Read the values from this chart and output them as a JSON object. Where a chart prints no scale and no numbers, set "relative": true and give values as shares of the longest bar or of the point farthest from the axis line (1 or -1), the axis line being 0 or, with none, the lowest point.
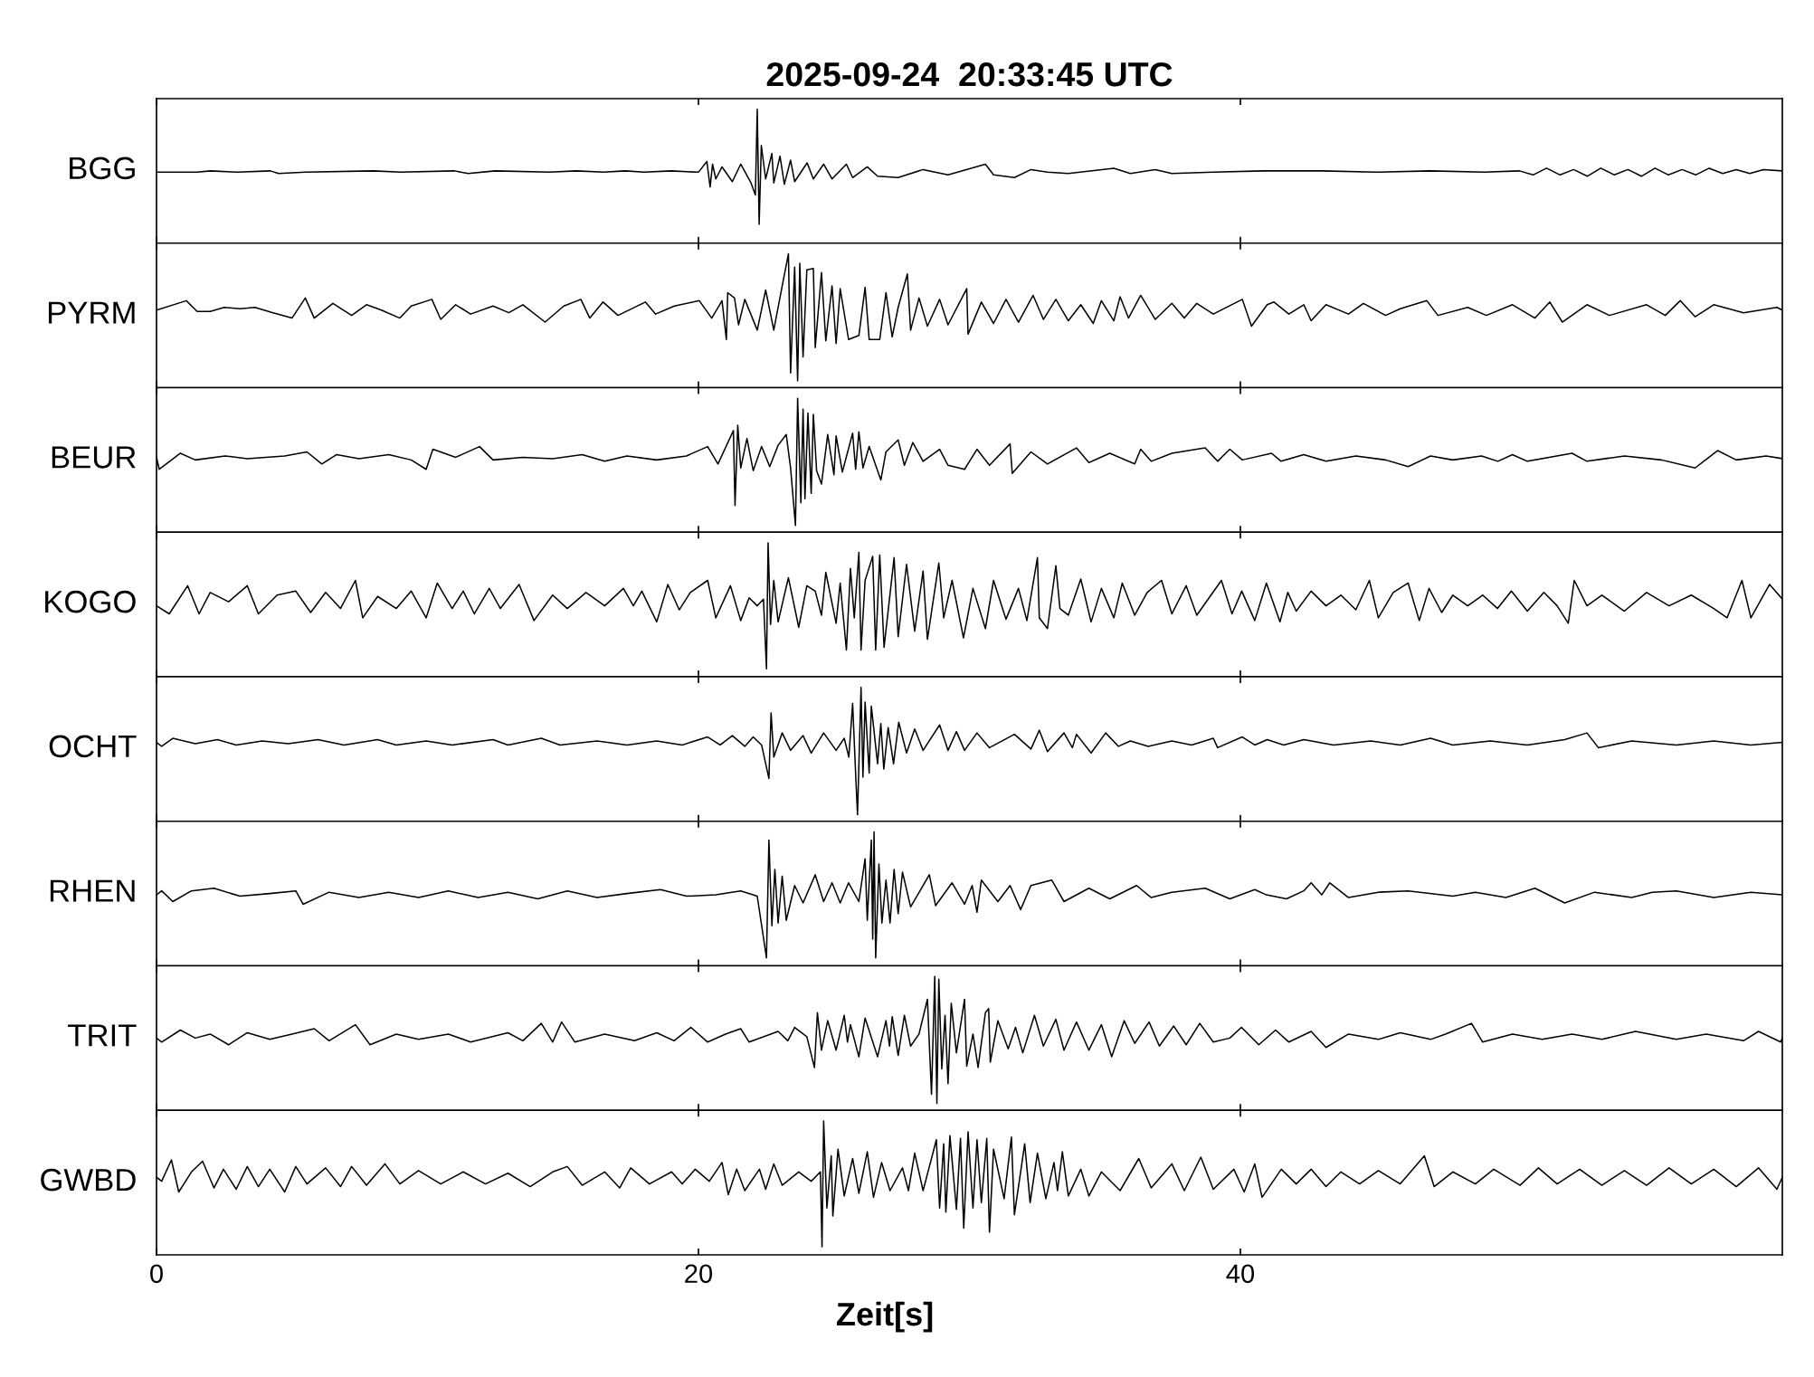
{
  "chart_data": [
    {
      "type": "line",
      "title": "2025-09-24  20:33:45 UTC",
      "ylabel": "BGG",
      "relative": true,
      "color": "#000000",
      "xlim": [
        0,
        60
      ],
      "xticks": [
        0,
        20,
        40
      ],
      "tick_labels": false,
      "x": [
        0,
        1.5,
        2.0,
        3.0,
        4.2,
        4.5,
        5.5,
        8.0,
        9.0,
        11.0,
        11.5,
        12.5,
        14.5,
        15.5,
        16.5,
        17.3,
        18.0,
        19.0,
        20.0,
        20.31,
        20.43,
        20.52,
        20.64,
        20.87,
        21.25,
        21.56,
        21.94,
        22.1,
        22.17,
        22.24,
        22.32,
        22.48,
        22.71,
        22.78,
        23.01,
        23.17,
        23.4,
        23.55,
        24.01,
        24.24,
        24.62,
        24.93,
        25.46,
        25.69,
        26.23,
        26.61,
        27.37,
        28.29,
        29.21,
        30.59,
        30.89,
        31.66,
        32.27,
        32.88,
        33.65,
        35.33,
        35.94,
        36.86,
        37.47,
        39.0,
        40.84,
        43,
        45,
        47,
        49,
        50.3,
        50.8,
        51.3,
        51.8,
        52.3,
        52.8,
        53.3,
        53.8,
        54.3,
        54.8,
        55.3,
        55.8,
        56.3,
        56.8,
        57.3,
        57.8,
        58.3,
        58.8,
        59.3,
        60
      ],
      "values": [
        0.53,
        0.53,
        0.54,
        0.53,
        0.54,
        0.52,
        0.53,
        0.54,
        0.53,
        0.54,
        0.52,
        0.54,
        0.53,
        0.54,
        0.53,
        0.54,
        0.53,
        0.54,
        0.53,
        0.61,
        0.42,
        0.59,
        0.48,
        0.57,
        0.46,
        0.59,
        0.45,
        0.36,
        1.0,
        0.14,
        0.73,
        0.48,
        0.67,
        0.45,
        0.65,
        0.44,
        0.62,
        0.46,
        0.6,
        0.48,
        0.59,
        0.48,
        0.59,
        0.49,
        0.57,
        0.5,
        0.49,
        0.55,
        0.51,
        0.59,
        0.51,
        0.49,
        0.55,
        0.53,
        0.52,
        0.56,
        0.52,
        0.55,
        0.52,
        0.53,
        0.54,
        0.54,
        0.53,
        0.54,
        0.53,
        0.54,
        0.51,
        0.56,
        0.51,
        0.55,
        0.5,
        0.56,
        0.51,
        0.55,
        0.5,
        0.56,
        0.51,
        0.55,
        0.51,
        0.56,
        0.52,
        0.55,
        0.52,
        0.55,
        0.54
      ]
    },
    {
      "type": "line",
      "ylabel": "PYRM",
      "relative": true,
      "color": "#000000",
      "xlim": [
        0,
        60
      ],
      "xticks": [
        0,
        20,
        40
      ],
      "tick_labels": false,
      "x": [
        0,
        1.1,
        1.5,
        1.98,
        2.5,
        3.08,
        3.63,
        4.3,
        5.0,
        5.49,
        5.82,
        6.51,
        7.2,
        7.75,
        8.3,
        8.98,
        9.4,
        10.16,
        10.49,
        11.04,
        11.59,
        12.42,
        13.0,
        13.52,
        14.34,
        15.03,
        15.66,
        15.99,
        16.48,
        17.03,
        18.04,
        18.42,
        19.11,
        20.03,
        20.49,
        20.87,
        21.03,
        21.08,
        21.33,
        21.48,
        21.71,
        22.17,
        22.48,
        22.78,
        23.09,
        23.32,
        23.4,
        23.55,
        23.66,
        23.74,
        23.86,
        24.0,
        24.24,
        24.31,
        24.54,
        24.7,
        24.93,
        25.08,
        25.23,
        25.54,
        25.92,
        26.15,
        26.3,
        26.69,
        26.92,
        27.15,
        27.37,
        27.71,
        27.83,
        28.14,
        28.45,
        28.9,
        29.21,
        29.67,
        29.9,
        29.95,
        30.44,
        30.89,
        31.35,
        31.81,
        32.35,
        32.73,
        33.19,
        33.65,
        34.11,
        34.57,
        34.87,
        35.33,
        35.56,
        35.87,
        36.32,
        36.86,
        37.47,
        37.93,
        38.39,
        39.0,
        40.07,
        40.41,
        40.99,
        41.24,
        41.79,
        42.34,
        42.61,
        43.16,
        43.99,
        44.54,
        45.36,
        45.9,
        46.88,
        47.29,
        48.39,
        49.08,
        50.04,
        50.87,
        51.42,
        51.88,
        52.79,
        53.62,
        54.99,
        55.68,
        56.23,
        56.78,
        57.47,
        58.57,
        59.8,
        60
      ],
      "values": [
        0.58,
        0.65,
        0.57,
        0.57,
        0.6,
        0.59,
        0.6,
        0.56,
        0.52,
        0.67,
        0.52,
        0.63,
        0.54,
        0.62,
        0.58,
        0.52,
        0.61,
        0.66,
        0.51,
        0.62,
        0.55,
        0.61,
        0.56,
        0.62,
        0.49,
        0.61,
        0.66,
        0.52,
        0.64,
        0.54,
        0.64,
        0.55,
        0.61,
        0.65,
        0.52,
        0.65,
        0.36,
        0.71,
        0.67,
        0.47,
        0.66,
        0.43,
        0.73,
        0.43,
        0.76,
        1.0,
        0.11,
        0.9,
        0.05,
        0.93,
        0.23,
        0.88,
        0.89,
        0.3,
        0.86,
        0.35,
        0.76,
        0.33,
        0.74,
        0.36,
        0.39,
        0.75,
        0.36,
        0.36,
        0.71,
        0.38,
        0.6,
        0.85,
        0.43,
        0.67,
        0.46,
        0.66,
        0.47,
        0.65,
        0.74,
        0.4,
        0.64,
        0.48,
        0.66,
        0.49,
        0.69,
        0.51,
        0.66,
        0.5,
        0.62,
        0.48,
        0.65,
        0.5,
        0.68,
        0.52,
        0.69,
        0.51,
        0.63,
        0.52,
        0.63,
        0.55,
        0.66,
        0.46,
        0.62,
        0.64,
        0.55,
        0.62,
        0.5,
        0.62,
        0.55,
        0.63,
        0.54,
        0.59,
        0.65,
        0.54,
        0.6,
        0.54,
        0.62,
        0.52,
        0.64,
        0.49,
        0.62,
        0.54,
        0.62,
        0.54,
        0.65,
        0.53,
        0.62,
        0.56,
        0.6,
        0.58
      ]
    },
    {
      "type": "line",
      "ylabel": "BEUR",
      "relative": true,
      "color": "#000000",
      "xlim": [
        0,
        60
      ],
      "xticks": [
        0,
        20,
        40
      ],
      "tick_labels": false,
      "x": [
        0,
        0.1,
        0.88,
        1.43,
        2.53,
        3.35,
        4.73,
        5.55,
        6.1,
        6.65,
        7.47,
        8.57,
        9.4,
        9.95,
        10.2,
        11.04,
        11.92,
        12.42,
        13.52,
        14.62,
        15.71,
        16.54,
        17.36,
        18.46,
        19.56,
        20.34,
        20.72,
        21.29,
        21.35,
        21.45,
        21.56,
        21.79,
        22.02,
        22.33,
        22.63,
        22.94,
        23.24,
        23.4,
        23.58,
        23.66,
        23.78,
        23.86,
        23.93,
        24.04,
        24.16,
        24.24,
        24.36,
        24.54,
        24.77,
        25.0,
        25.08,
        25.31,
        25.69,
        25.8,
        25.92,
        26.07,
        26.3,
        26.73,
        26.92,
        27.37,
        27.6,
        27.91,
        28.29,
        28.9,
        29.21,
        29.82,
        30.28,
        30.74,
        31.5,
        31.58,
        32.27,
        32.88,
        33.95,
        34.41,
        35.18,
        36.1,
        36.32,
        36.71,
        37.47,
        38.7,
        39.16,
        39.61,
        40.07,
        41.15,
        41.5,
        42.34,
        43.16,
        44.26,
        45.36,
        46.19,
        47.02,
        47.84,
        48.9,
        49.5,
        50.04,
        50.59,
        52.24,
        52.79,
        54.17,
        55.54,
        56.78,
        57.61,
        58.3,
        59.4,
        60
      ],
      "values": [
        0.56,
        0.47,
        0.59,
        0.54,
        0.57,
        0.55,
        0.57,
        0.6,
        0.51,
        0.58,
        0.55,
        0.58,
        0.54,
        0.47,
        0.62,
        0.56,
        0.64,
        0.54,
        0.56,
        0.55,
        0.58,
        0.53,
        0.57,
        0.54,
        0.57,
        0.64,
        0.51,
        0.76,
        0.2,
        0.8,
        0.48,
        0.7,
        0.46,
        0.64,
        0.49,
        0.65,
        0.73,
        0.48,
        0.05,
        1.0,
        0.22,
        0.92,
        0.25,
        0.89,
        0.29,
        0.88,
        0.46,
        0.36,
        0.73,
        0.43,
        0.72,
        0.45,
        0.74,
        0.47,
        0.75,
        0.48,
        0.64,
        0.39,
        0.6,
        0.69,
        0.5,
        0.67,
        0.53,
        0.62,
        0.5,
        0.47,
        0.62,
        0.5,
        0.66,
        0.44,
        0.6,
        0.51,
        0.63,
        0.52,
        0.59,
        0.51,
        0.62,
        0.53,
        0.59,
        0.63,
        0.53,
        0.62,
        0.54,
        0.59,
        0.53,
        0.58,
        0.53,
        0.57,
        0.54,
        0.49,
        0.57,
        0.54,
        0.57,
        0.53,
        0.58,
        0.53,
        0.59,
        0.53,
        0.57,
        0.54,
        0.48,
        0.61,
        0.54,
        0.57,
        0.55
      ]
    },
    {
      "type": "line",
      "ylabel": "KOGO",
      "relative": true,
      "color": "#000000",
      "xlim": [
        0,
        60
      ],
      "xticks": [
        0,
        20,
        40
      ],
      "tick_labels": false,
      "x": [
        0,
        0.47,
        1.15,
        1.57,
        1.98,
        2.66,
        3.35,
        3.76,
        4.45,
        5.14,
        5.69,
        6.24,
        6.79,
        7.34,
        7.61,
        8.16,
        8.85,
        9.4,
        9.95,
        10.36,
        10.91,
        11.32,
        11.73,
        12.28,
        12.69,
        13.38,
        13.93,
        14.62,
        15.16,
        15.85,
        16.54,
        17.23,
        17.6,
        17.91,
        18.46,
        18.87,
        19.29,
        19.7,
        20.34,
        20.64,
        21.18,
        21.56,
        21.87,
        22.17,
        22.4,
        22.51,
        22.57,
        22.66,
        22.78,
        22.94,
        23.32,
        23.7,
        24.0,
        24.31,
        24.54,
        24.7,
        25.08,
        25.23,
        25.46,
        25.61,
        25.75,
        25.92,
        26.0,
        26.15,
        26.43,
        26.54,
        26.69,
        26.85,
        27.22,
        27.37,
        27.68,
        27.98,
        28.29,
        28.45,
        28.87,
        29.05,
        29.36,
        29.78,
        30.13,
        30.59,
        30.89,
        31.35,
        31.81,
        32.12,
        32.51,
        32.58,
        32.88,
        33.19,
        33.34,
        33.65,
        34.11,
        34.49,
        34.87,
        35.33,
        35.64,
        36.1,
        36.56,
        37.09,
        37.47,
        38.0,
        38.39,
        39.3,
        39.69,
        40.05,
        40.53,
        40.96,
        41.46,
        41.75,
        42.06,
        42.61,
        43.16,
        43.71,
        44.26,
        44.76,
        45.09,
        45.64,
        46.19,
        46.6,
        46.96,
        47.43,
        47.84,
        48.39,
        48.94,
        49.49,
        50.0,
        50.59,
        51.2,
        51.69,
        52.1,
        52.32,
        52.79,
        53.34,
        54.17,
        54.99,
        55.82,
        56.64,
        57.47,
        57.96,
        58.51,
        58.84,
        59.53,
        60
      ],
      "values": [
        0.53,
        0.47,
        0.68,
        0.47,
        0.63,
        0.56,
        0.68,
        0.47,
        0.61,
        0.64,
        0.48,
        0.63,
        0.51,
        0.72,
        0.44,
        0.6,
        0.51,
        0.64,
        0.44,
        0.7,
        0.51,
        0.64,
        0.47,
        0.66,
        0.51,
        0.69,
        0.42,
        0.61,
        0.51,
        0.63,
        0.53,
        0.66,
        0.53,
        0.64,
        0.41,
        0.69,
        0.5,
        0.63,
        0.72,
        0.44,
        0.68,
        0.42,
        0.59,
        0.53,
        0.58,
        0.06,
        1.0,
        0.39,
        0.72,
        0.41,
        0.74,
        0.37,
        0.68,
        0.64,
        0.46,
        0.78,
        0.4,
        0.7,
        0.2,
        0.81,
        0.44,
        0.93,
        0.2,
        0.72,
        0.9,
        0.2,
        0.91,
        0.22,
        0.89,
        0.3,
        0.84,
        0.34,
        0.79,
        0.28,
        0.85,
        0.44,
        0.72,
        0.29,
        0.66,
        0.36,
        0.72,
        0.43,
        0.66,
        0.42,
        0.89,
        0.44,
        0.36,
        0.83,
        0.51,
        0.46,
        0.73,
        0.41,
        0.66,
        0.44,
        0.7,
        0.46,
        0.63,
        0.72,
        0.47,
        0.68,
        0.46,
        0.72,
        0.47,
        0.64,
        0.42,
        0.7,
        0.41,
        0.63,
        0.49,
        0.64,
        0.53,
        0.61,
        0.5,
        0.72,
        0.44,
        0.63,
        0.7,
        0.42,
        0.66,
        0.48,
        0.61,
        0.53,
        0.61,
        0.51,
        0.64,
        0.49,
        0.63,
        0.53,
        0.4,
        0.72,
        0.53,
        0.61,
        0.49,
        0.63,
        0.53,
        0.61,
        0.51,
        0.44,
        0.72,
        0.44,
        0.69,
        0.58
      ]
    },
    {
      "type": "line",
      "ylabel": "OCHT",
      "relative": true,
      "color": "#000000",
      "xlim": [
        0,
        60
      ],
      "xticks": [
        0,
        20,
        40
      ],
      "tick_labels": false,
      "x": [
        0,
        0.19,
        0.6,
        1.43,
        2.25,
        2.94,
        3.9,
        4.86,
        5.96,
        6.92,
        8.16,
        8.85,
        9.95,
        10.91,
        12.42,
        12.97,
        14.2,
        14.89,
        16.26,
        17.36,
        18.46,
        19.4,
        20.34,
        20.8,
        21.25,
        21.71,
        22.02,
        22.33,
        22.6,
        22.68,
        22.78,
        23.09,
        23.4,
        23.86,
        24.16,
        24.62,
        25.08,
        25.38,
        25.55,
        25.69,
        25.81,
        25.87,
        26.0,
        26.07,
        26.15,
        26.3,
        26.38,
        26.61,
        26.73,
        26.84,
        27.0,
        27.2,
        27.39,
        27.68,
        27.98,
        28.29,
        28.9,
        29.21,
        29.52,
        29.82,
        30.28,
        30.74,
        31.66,
        32.27,
        32.58,
        32.88,
        33.49,
        33.8,
        33.95,
        34.49,
        35.03,
        35.5,
        35.94,
        36.6,
        37.47,
        38.2,
        39.0,
        39.16,
        40.07,
        40.53,
        40.99,
        41.6,
        42.34,
        43.44,
        44.81,
        45.9,
        47.02,
        47.84,
        49.22,
        50.59,
        51.97,
        52.79,
        53.21,
        54.44,
        56.09,
        57.47,
        58.84,
        60
      ],
      "values": [
        0.59,
        0.56,
        0.62,
        0.58,
        0.61,
        0.57,
        0.6,
        0.58,
        0.61,
        0.57,
        0.61,
        0.57,
        0.6,
        0.57,
        0.61,
        0.57,
        0.62,
        0.57,
        0.6,
        0.57,
        0.6,
        0.57,
        0.63,
        0.57,
        0.64,
        0.56,
        0.63,
        0.57,
        0.32,
        0.81,
        0.48,
        0.66,
        0.53,
        0.64,
        0.51,
        0.66,
        0.53,
        0.62,
        0.48,
        0.88,
        0.31,
        0.05,
        1.0,
        0.33,
        0.89,
        0.36,
        0.86,
        0.43,
        0.73,
        0.39,
        0.7,
        0.43,
        0.74,
        0.51,
        0.69,
        0.53,
        0.72,
        0.53,
        0.67,
        0.53,
        0.66,
        0.55,
        0.65,
        0.54,
        0.68,
        0.52,
        0.66,
        0.55,
        0.65,
        0.51,
        0.66,
        0.56,
        0.6,
        0.56,
        0.6,
        0.57,
        0.62,
        0.55,
        0.63,
        0.57,
        0.61,
        0.57,
        0.61,
        0.57,
        0.6,
        0.57,
        0.62,
        0.57,
        0.6,
        0.57,
        0.61,
        0.66,
        0.55,
        0.6,
        0.57,
        0.6,
        0.57,
        0.59
      ]
    },
    {
      "type": "line",
      "ylabel": "RHEN",
      "relative": true,
      "color": "#000000",
      "xlim": [
        0,
        60
      ],
      "xticks": [
        0,
        20,
        40
      ],
      "tick_labels": false,
      "x": [
        0,
        0.19,
        0.6,
        1.29,
        2.12,
        3.08,
        4.18,
        5.14,
        5.41,
        6.37,
        7.47,
        8.57,
        9.67,
        10.77,
        11.87,
        12.97,
        14.07,
        15.16,
        16.26,
        17.36,
        18.6,
        19.56,
        20.64,
        21.56,
        22.17,
        22.51,
        22.6,
        22.71,
        22.82,
        22.94,
        23.09,
        23.24,
        23.55,
        23.86,
        24.31,
        24.62,
        24.93,
        25.23,
        25.54,
        25.92,
        26.15,
        26.23,
        26.38,
        26.43,
        26.48,
        26.54,
        26.66,
        26.77,
        26.92,
        27.07,
        27.22,
        27.37,
        27.53,
        27.83,
        28.52,
        28.75,
        29.36,
        29.82,
        30.1,
        30.28,
        30.44,
        31.05,
        31.5,
        31.89,
        32.27,
        33.04,
        33.49,
        34.41,
        35.18,
        36.17,
        36.71,
        37.47,
        38.7,
        39.61,
        40.53,
        40.96,
        41.7,
        42.34,
        42.61,
        43.0,
        43.3,
        43.99,
        45.09,
        46.19,
        47.84,
        48.67,
        49.8,
        50.87,
        51.97,
        53.07,
        54.44,
        55.2,
        56.09,
        57.47,
        58.84,
        60
      ],
      "values": [
        0.53,
        0.56,
        0.48,
        0.56,
        0.58,
        0.52,
        0.54,
        0.56,
        0.46,
        0.55,
        0.51,
        0.55,
        0.51,
        0.56,
        0.51,
        0.55,
        0.5,
        0.56,
        0.51,
        0.54,
        0.57,
        0.52,
        0.53,
        0.56,
        0.52,
        0.06,
        0.94,
        0.3,
        0.72,
        0.32,
        0.67,
        0.34,
        0.6,
        0.47,
        0.68,
        0.48,
        0.62,
        0.47,
        0.62,
        0.48,
        0.8,
        0.34,
        0.94,
        0.2,
        1.0,
        0.06,
        0.76,
        0.32,
        0.64,
        0.32,
        0.72,
        0.39,
        0.7,
        0.44,
        0.68,
        0.45,
        0.62,
        0.46,
        0.6,
        0.4,
        0.64,
        0.48,
        0.6,
        0.42,
        0.6,
        0.64,
        0.48,
        0.58,
        0.5,
        0.6,
        0.51,
        0.55,
        0.58,
        0.5,
        0.57,
        0.53,
        0.5,
        0.56,
        0.62,
        0.53,
        0.62,
        0.51,
        0.55,
        0.56,
        0.52,
        0.55,
        0.51,
        0.58,
        0.47,
        0.55,
        0.51,
        0.55,
        0.56,
        0.51,
        0.55,
        0.53
      ]
    },
    {
      "type": "line",
      "ylabel": "TRIT",
      "relative": true,
      "color": "#000000",
      "xlim": [
        0,
        60
      ],
      "xticks": [
        0,
        20,
        40
      ],
      "tick_labels": false,
      "x": [
        0,
        0.19,
        0.88,
        1.43,
        1.98,
        2.66,
        3.35,
        4.18,
        5.0,
        5.82,
        6.37,
        7.34,
        7.88,
        8.85,
        9.67,
        10.77,
        11.59,
        12.97,
        13.52,
        14.2,
        14.62,
        14.95,
        15.44,
        16.54,
        17.64,
        18.46,
        19.1,
        19.72,
        20.34,
        21.0,
        21.56,
        21.87,
        22.94,
        23.3,
        23.55,
        24.0,
        24.28,
        24.39,
        24.54,
        24.77,
        25.08,
        25.38,
        25.5,
        25.61,
        25.92,
        26.15,
        26.61,
        26.92,
        27.05,
        27.15,
        27.37,
        27.6,
        27.83,
        28.14,
        28.45,
        28.6,
        28.72,
        28.8,
        28.87,
        28.98,
        29.1,
        29.21,
        29.33,
        29.52,
        29.82,
        29.9,
        30.13,
        30.32,
        30.59,
        30.71,
        30.77,
        31.05,
        31.43,
        31.7,
        31.97,
        32.4,
        32.73,
        33.19,
        33.49,
        33.95,
        34.41,
        34.87,
        35.25,
        35.71,
        36.1,
        36.63,
        37.01,
        37.54,
        38.0,
        38.5,
        39.0,
        39.61,
        40.04,
        40.68,
        41.3,
        41.79,
        42.61,
        43.16,
        43.99,
        45.09,
        45.9,
        47.02,
        47.57,
        48.53,
        48.94,
        50.04,
        51.14,
        52.24,
        53.34,
        54.58,
        56.09,
        57.19,
        58.57,
        59.12,
        59.94,
        60
      ],
      "values": [
        0.54,
        0.51,
        0.6,
        0.54,
        0.57,
        0.49,
        0.58,
        0.53,
        0.57,
        0.61,
        0.52,
        0.64,
        0.49,
        0.57,
        0.53,
        0.57,
        0.51,
        0.58,
        0.52,
        0.65,
        0.51,
        0.66,
        0.51,
        0.57,
        0.52,
        0.58,
        0.52,
        0.62,
        0.51,
        0.57,
        0.61,
        0.51,
        0.59,
        0.52,
        0.62,
        0.55,
        0.32,
        0.73,
        0.45,
        0.67,
        0.45,
        0.71,
        0.51,
        0.64,
        0.4,
        0.69,
        0.4,
        0.67,
        0.48,
        0.7,
        0.41,
        0.71,
        0.48,
        0.57,
        0.83,
        0.12,
        1.0,
        0.05,
        0.98,
        0.31,
        0.71,
        0.2,
        0.8,
        0.43,
        0.83,
        0.33,
        0.57,
        0.32,
        0.73,
        0.76,
        0.36,
        0.67,
        0.46,
        0.62,
        0.43,
        0.71,
        0.48,
        0.68,
        0.45,
        0.66,
        0.45,
        0.64,
        0.4,
        0.67,
        0.5,
        0.66,
        0.48,
        0.63,
        0.49,
        0.65,
        0.51,
        0.54,
        0.62,
        0.49,
        0.6,
        0.51,
        0.59,
        0.47,
        0.57,
        0.53,
        0.58,
        0.53,
        0.57,
        0.65,
        0.51,
        0.57,
        0.53,
        0.57,
        0.53,
        0.59,
        0.53,
        0.57,
        0.52,
        0.59,
        0.51,
        0.54
      ]
    },
    {
      "type": "line",
      "ylabel": "GWBD",
      "xlabel": "Zeit[s]",
      "relative": true,
      "color": "#000000",
      "xlim": [
        0,
        60
      ],
      "xticks": [
        0,
        20,
        40
      ],
      "tick_labels": "x",
      "x": [
        0,
        0.19,
        0.55,
        0.82,
        1.29,
        1.7,
        2.12,
        2.47,
        2.94,
        3.35,
        3.76,
        4.18,
        4.73,
        5.14,
        5.55,
        6.24,
        6.79,
        7.2,
        7.75,
        8.43,
        8.98,
        9.67,
        10.49,
        11.32,
        12.14,
        12.97,
        13.79,
        14.62,
        15.16,
        15.71,
        16.54,
        17.09,
        17.5,
        18.19,
        19.01,
        19.4,
        19.88,
        20.4,
        20.87,
        21.1,
        21.41,
        21.71,
        22.25,
        22.48,
        22.78,
        23.09,
        23.7,
        24.16,
        24.5,
        24.56,
        24.62,
        24.74,
        24.9,
        24.96,
        25.15,
        25.38,
        25.69,
        25.92,
        26.23,
        26.46,
        26.76,
        27.07,
        27.53,
        27.75,
        27.98,
        28.29,
        28.78,
        28.9,
        29.05,
        29.13,
        29.28,
        29.52,
        29.67,
        29.79,
        29.95,
        30.13,
        30.28,
        30.44,
        30.64,
        30.74,
        30.89,
        31.28,
        31.55,
        31.66,
        32.04,
        32.24,
        32.51,
        32.82,
        33.12,
        33.25,
        33.43,
        33.65,
        34.11,
        34.41,
        34.87,
        35.56,
        36.25,
        36.71,
        37.47,
        37.93,
        38.54,
        39.0,
        39.76,
        40.14,
        40.53,
        40.8,
        41.51,
        42.06,
        42.61,
        43.16,
        43.71,
        44.4,
        45.09,
        45.9,
        46.79,
        47.15,
        47.84,
        48.67,
        49.35,
        50.32,
        51.0,
        51.69,
        52.52,
        53.34,
        54.17,
        54.99,
        55.82,
        56.64,
        57.47,
        58.3,
        59.12,
        59.8,
        60
      ],
      "values": [
        0.58,
        0.55,
        0.71,
        0.47,
        0.62,
        0.7,
        0.5,
        0.64,
        0.49,
        0.66,
        0.51,
        0.64,
        0.47,
        0.66,
        0.53,
        0.65,
        0.51,
        0.66,
        0.52,
        0.68,
        0.53,
        0.63,
        0.53,
        0.62,
        0.53,
        0.61,
        0.51,
        0.62,
        0.66,
        0.52,
        0.62,
        0.5,
        0.65,
        0.53,
        0.62,
        0.53,
        0.64,
        0.55,
        0.69,
        0.45,
        0.64,
        0.48,
        0.64,
        0.49,
        0.68,
        0.52,
        0.62,
        0.55,
        0.62,
        0.06,
        1.0,
        0.35,
        0.74,
        0.29,
        0.79,
        0.44,
        0.72,
        0.46,
        0.77,
        0.43,
        0.69,
        0.48,
        0.65,
        0.48,
        0.76,
        0.48,
        0.86,
        0.35,
        0.83,
        0.32,
        0.89,
        0.34,
        0.87,
        0.2,
        0.92,
        0.35,
        0.86,
        0.39,
        0.87,
        0.17,
        0.79,
        0.42,
        0.88,
        0.3,
        0.83,
        0.39,
        0.76,
        0.42,
        0.69,
        0.48,
        0.77,
        0.44,
        0.64,
        0.44,
        0.62,
        0.48,
        0.72,
        0.5,
        0.68,
        0.48,
        0.73,
        0.49,
        0.64,
        0.47,
        0.68,
        0.43,
        0.64,
        0.53,
        0.64,
        0.51,
        0.62,
        0.53,
        0.63,
        0.53,
        0.74,
        0.51,
        0.62,
        0.53,
        0.64,
        0.52,
        0.65,
        0.53,
        0.64,
        0.52,
        0.63,
        0.52,
        0.65,
        0.53,
        0.64,
        0.51,
        0.65,
        0.49,
        0.58
      ]
    }
  ]
}
